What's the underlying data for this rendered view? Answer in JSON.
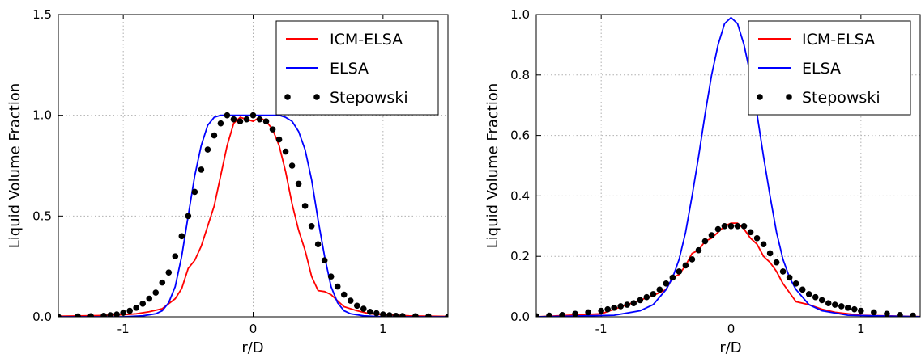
{
  "chart_data": [
    {
      "type": "line",
      "xlabel": "r/D",
      "ylabel": "Liquid Volume Fraction",
      "xlim": [
        -1.5,
        1.5
      ],
      "ylim": [
        0,
        1.5
      ],
      "xticks": [
        "-1",
        "0",
        "1"
      ],
      "xtick_values": [
        -1,
        0,
        1
      ],
      "yticks": [
        "0.0",
        "0.5",
        "1.0",
        "1.5"
      ],
      "ytick_values": [
        0,
        0.5,
        1.0,
        1.5
      ],
      "grid": true,
      "legend_position": "top-right",
      "legend": [
        "ICM-ELSA",
        "ELSA",
        "Stepowski"
      ],
      "series": [
        {
          "name": "ICM-ELSA",
          "color": "#ff0000",
          "style": "line",
          "x": [
            -1.5,
            -1.2,
            -1.0,
            -0.9,
            -0.8,
            -0.7,
            -0.6,
            -0.55,
            -0.5,
            -0.45,
            -0.4,
            -0.35,
            -0.3,
            -0.25,
            -0.2,
            -0.15,
            -0.1,
            -0.05,
            0,
            0.05,
            0.1,
            0.15,
            0.2,
            0.25,
            0.3,
            0.35,
            0.4,
            0.45,
            0.5,
            0.55,
            0.6,
            0.65,
            0.7,
            0.8,
            0.9,
            1.0,
            1.2,
            1.5
          ],
          "y": [
            0.003,
            0.006,
            0.01,
            0.015,
            0.025,
            0.04,
            0.09,
            0.14,
            0.24,
            0.28,
            0.35,
            0.45,
            0.55,
            0.7,
            0.85,
            0.96,
            0.99,
            0.98,
            0.97,
            0.99,
            0.97,
            0.93,
            0.85,
            0.72,
            0.56,
            0.43,
            0.33,
            0.2,
            0.13,
            0.125,
            0.11,
            0.08,
            0.05,
            0.03,
            0.015,
            0.01,
            0.005,
            0.002
          ]
        },
        {
          "name": "ELSA",
          "color": "#0000ff",
          "style": "line",
          "x": [
            -1.5,
            -1.0,
            -0.85,
            -0.75,
            -0.7,
            -0.65,
            -0.6,
            -0.55,
            -0.5,
            -0.45,
            -0.4,
            -0.35,
            -0.3,
            -0.25,
            -0.2,
            0,
            0.2,
            0.25,
            0.3,
            0.35,
            0.4,
            0.45,
            0.5,
            0.55,
            0.6,
            0.65,
            0.7,
            0.75,
            0.85,
            1.0,
            1.5
          ],
          "y": [
            0.0,
            0.0,
            0.005,
            0.015,
            0.03,
            0.07,
            0.15,
            0.3,
            0.5,
            0.7,
            0.85,
            0.95,
            0.99,
            1.0,
            1.0,
            1.0,
            1.0,
            0.99,
            0.97,
            0.92,
            0.83,
            0.68,
            0.48,
            0.3,
            0.15,
            0.07,
            0.03,
            0.015,
            0.005,
            0.0,
            0.0
          ]
        },
        {
          "name": "Stepowski",
          "color": "#000000",
          "style": "markers",
          "x": [
            -1.5,
            -1.35,
            -1.25,
            -1.15,
            -1.1,
            -1.05,
            -1.0,
            -0.95,
            -0.9,
            -0.85,
            -0.8,
            -0.75,
            -0.7,
            -0.65,
            -0.6,
            -0.55,
            -0.5,
            -0.45,
            -0.4,
            -0.35,
            -0.3,
            -0.25,
            -0.2,
            -0.15,
            -0.1,
            -0.05,
            0.0,
            0.05,
            0.1,
            0.15,
            0.2,
            0.25,
            0.3,
            0.35,
            0.4,
            0.45,
            0.5,
            0.55,
            0.6,
            0.65,
            0.7,
            0.75,
            0.8,
            0.85,
            0.9,
            0.95,
            1.0,
            1.05,
            1.1,
            1.15,
            1.25,
            1.35,
            1.5
          ],
          "y": [
            0.0,
            0.002,
            0.003,
            0.005,
            0.008,
            0.012,
            0.02,
            0.03,
            0.045,
            0.065,
            0.09,
            0.12,
            0.17,
            0.22,
            0.3,
            0.4,
            0.5,
            0.62,
            0.73,
            0.83,
            0.9,
            0.96,
            1.0,
            0.98,
            0.97,
            0.98,
            1.0,
            0.98,
            0.97,
            0.93,
            0.88,
            0.82,
            0.75,
            0.66,
            0.55,
            0.45,
            0.36,
            0.28,
            0.2,
            0.15,
            0.11,
            0.08,
            0.055,
            0.04,
            0.025,
            0.018,
            0.012,
            0.008,
            0.005,
            0.004,
            0.003,
            0.002,
            0.0
          ]
        }
      ]
    },
    {
      "type": "line",
      "xlabel": "r/D",
      "ylabel": "Liquid Volume Fraction",
      "xlim": [
        -1.5,
        1.5
      ],
      "ylim": [
        0,
        1.0
      ],
      "xticks": [
        "-1",
        "0",
        "1"
      ],
      "xtick_values": [
        -1,
        0,
        1
      ],
      "yticks": [
        "0.0",
        "0.2",
        "0.4",
        "0.6",
        "0.8",
        "1.0"
      ],
      "ytick_values": [
        0,
        0.2,
        0.4,
        0.6,
        0.8,
        1.0
      ],
      "grid": true,
      "legend_position": "top-right",
      "legend": [
        "ICM-ELSA",
        "ELSA",
        "Stepowski"
      ],
      "series": [
        {
          "name": "ICM-ELSA",
          "color": "#ff0000",
          "style": "line",
          "x": [
            -1.5,
            -1.0,
            -0.8,
            -0.6,
            -0.5,
            -0.45,
            -0.4,
            -0.35,
            -0.3,
            -0.25,
            -0.2,
            -0.15,
            -0.1,
            -0.05,
            0,
            0.05,
            0.1,
            0.15,
            0.2,
            0.25,
            0.3,
            0.35,
            0.4,
            0.45,
            0.5,
            0.6,
            0.7,
            0.8,
            1.0,
            1.5
          ],
          "y": [
            0.0,
            0.01,
            0.04,
            0.07,
            0.09,
            0.13,
            0.14,
            0.17,
            0.21,
            0.22,
            0.25,
            0.26,
            0.28,
            0.3,
            0.31,
            0.31,
            0.29,
            0.26,
            0.24,
            0.2,
            0.18,
            0.15,
            0.11,
            0.08,
            0.05,
            0.04,
            0.025,
            0.015,
            0.005,
            0.0
          ]
        },
        {
          "name": "ELSA",
          "color": "#0000ff",
          "style": "line",
          "x": [
            -1.5,
            -0.9,
            -0.7,
            -0.6,
            -0.5,
            -0.45,
            -0.4,
            -0.35,
            -0.3,
            -0.25,
            -0.2,
            -0.15,
            -0.1,
            -0.05,
            0,
            0.05,
            0.1,
            0.15,
            0.2,
            0.25,
            0.3,
            0.35,
            0.4,
            0.45,
            0.5,
            0.6,
            0.7,
            0.9,
            1.5
          ],
          "y": [
            0.0,
            0.005,
            0.02,
            0.04,
            0.09,
            0.13,
            0.19,
            0.28,
            0.4,
            0.53,
            0.67,
            0.8,
            0.9,
            0.97,
            0.99,
            0.97,
            0.9,
            0.8,
            0.67,
            0.53,
            0.4,
            0.28,
            0.19,
            0.13,
            0.09,
            0.04,
            0.02,
            0.005,
            0.0
          ]
        },
        {
          "name": "Stepowski",
          "color": "#000000",
          "style": "markers",
          "x": [
            -1.5,
            -1.4,
            -1.3,
            -1.2,
            -1.1,
            -1.0,
            -0.95,
            -0.9,
            -0.85,
            -0.8,
            -0.75,
            -0.7,
            -0.65,
            -0.6,
            -0.55,
            -0.5,
            -0.45,
            -0.4,
            -0.35,
            -0.3,
            -0.25,
            -0.2,
            -0.15,
            -0.1,
            -0.05,
            0.0,
            0.05,
            0.1,
            0.15,
            0.2,
            0.25,
            0.3,
            0.35,
            0.4,
            0.45,
            0.5,
            0.55,
            0.6,
            0.65,
            0.7,
            0.75,
            0.8,
            0.85,
            0.9,
            0.95,
            1.0,
            1.1,
            1.2,
            1.3,
            1.4,
            1.5
          ],
          "y": [
            0.002,
            0.004,
            0.006,
            0.01,
            0.015,
            0.02,
            0.025,
            0.03,
            0.035,
            0.04,
            0.045,
            0.055,
            0.065,
            0.075,
            0.09,
            0.11,
            0.13,
            0.15,
            0.17,
            0.19,
            0.22,
            0.25,
            0.27,
            0.29,
            0.3,
            0.3,
            0.3,
            0.3,
            0.28,
            0.26,
            0.24,
            0.21,
            0.18,
            0.15,
            0.13,
            0.11,
            0.09,
            0.075,
            0.065,
            0.055,
            0.045,
            0.04,
            0.035,
            0.03,
            0.025,
            0.02,
            0.015,
            0.01,
            0.006,
            0.004,
            0.002
          ]
        }
      ]
    }
  ]
}
